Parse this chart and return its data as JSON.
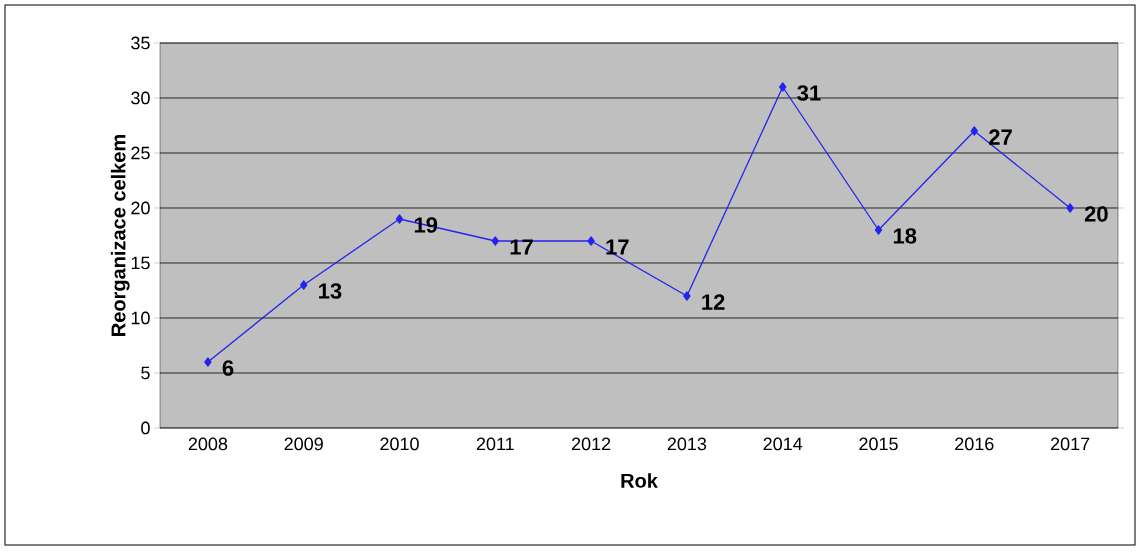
{
  "chart_data": {
    "type": "line",
    "xlabel": "Rok",
    "ylabel": "Reorganizace celkem",
    "categories": [
      "2008",
      "2009",
      "2010",
      "2011",
      "2012",
      "2013",
      "2014",
      "2015",
      "2016",
      "2017"
    ],
    "series": [
      {
        "color": "#2424f0",
        "values": [
          6,
          13,
          19,
          17,
          17,
          12,
          31,
          18,
          27,
          20
        ]
      }
    ],
    "ylim": [
      0,
      35
    ],
    "yticks": [
      0,
      5,
      10,
      15,
      20,
      25,
      30,
      35
    ],
    "grid": "y",
    "marker": "diamond",
    "data_labels": true
  }
}
